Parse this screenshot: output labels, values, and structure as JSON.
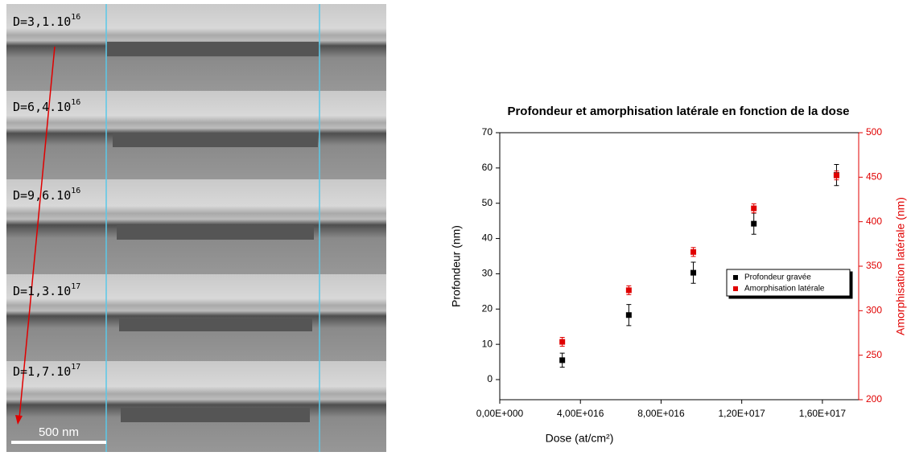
{
  "image_panel": {
    "labels": [
      {
        "text": "D=3,1.10",
        "sup": "16"
      },
      {
        "text": "D=6,4.10",
        "sup": "16"
      },
      {
        "text": "D=9,6.10",
        "sup": "16"
      },
      {
        "text": "D=1,3.10",
        "sup": "17"
      },
      {
        "text": "D=1,7.10",
        "sup": "17"
      }
    ],
    "scale_bar": "500 nm"
  },
  "chart_data": {
    "type": "scatter",
    "title": "Profondeur et amorphisation latérale en fonction de la dose",
    "x_label": "Dose (at/cm²)",
    "y_label": "Profondeur (nm)",
    "y2_label": "Amorphisation latérale (nm)",
    "x": [
      3.1e+16,
      6.4e+16,
      9.6e+16,
      1.26e+17,
      1.67e+17
    ],
    "series": [
      {
        "name": "Profondeur gravée",
        "color": "#000000",
        "values": [
          5.5,
          18.3,
          30.3,
          44.2,
          58
        ],
        "errors": [
          2,
          3,
          3,
          3,
          3
        ]
      },
      {
        "name": "Amorphisation latérale",
        "color": "#e00000",
        "axis": "y2",
        "values": [
          265,
          323,
          366,
          415,
          452
        ],
        "errors": [
          5,
          5,
          5,
          5,
          5
        ]
      }
    ],
    "xlim": [
      0,
      1.78e+17
    ],
    "xticks": [
      {
        "value": 0,
        "label": "0,00E+000"
      },
      {
        "value": 4e+16,
        "label": "4,00E+016"
      },
      {
        "value": 8e+16,
        "label": "8,00E+016"
      },
      {
        "value": 1.2e+17,
        "label": "1,20E+017"
      },
      {
        "value": 1.6e+17,
        "label": "1,60E+017"
      }
    ],
    "ylim": [
      -5.7,
      70
    ],
    "yticks": [
      0,
      10,
      20,
      30,
      40,
      50,
      60,
      70
    ],
    "y2lim": [
      200,
      500
    ],
    "y2ticks": [
      200,
      250,
      300,
      350,
      400,
      450,
      500
    ],
    "y2_color": "#e00000",
    "legend": "right"
  }
}
